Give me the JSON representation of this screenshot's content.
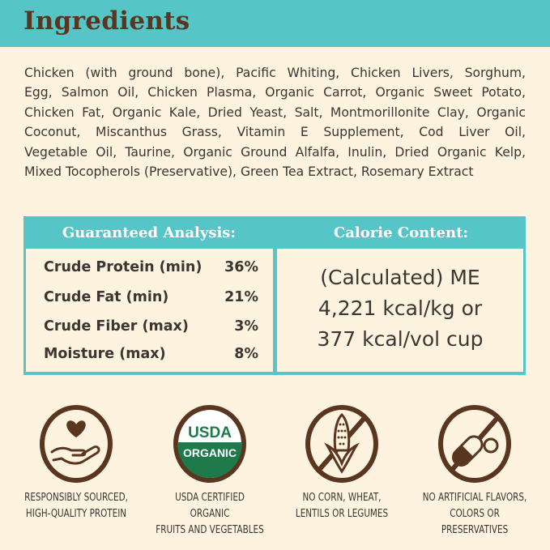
{
  "header": {
    "title": "Ingredients"
  },
  "ingredients": {
    "lines": [
      "Chicken (with ground bone), Pacific Whiting, Chicken Livers, Sorghum,",
      "Egg, Salmon Oil, Chicken Plasma, Organic Carrot, Organic Sweet Potato,",
      "Chicken Fat, Organic Kale, Dried Yeast, Salt, Montmorillonite Clay, Organic",
      "Coconut, Miscanthus Grass, Vitamin E Supplement, Cod Liver Oil,",
      "Vegetable Oil, Taurine, Organic Ground Alfalfa, Inulin, Dried Organic Kelp,",
      "Mixed Tocopherols (Preservative), Green Tea Extract, Rosemary Extract"
    ]
  },
  "analysis": {
    "title": "Guaranteed Analysis:",
    "rows": [
      {
        "label": "Crude Protein (min)",
        "value": "36%"
      },
      {
        "label": "Crude Fat (min)",
        "value": "21%"
      },
      {
        "label": "Crude Fiber (max)",
        "value": "3%"
      },
      {
        "label": "Moisture (max)",
        "value": "8%"
      }
    ]
  },
  "calorie": {
    "title": "Calorie Content:",
    "lines": [
      "(Calculated) ME",
      "4,221 kcal/kg or",
      "377 kcal/vol cup"
    ]
  },
  "badges": [
    {
      "icon": "heart-hand-icon",
      "line1": "RESPONSIBLY SOURCED,",
      "line2": "HIGH-QUALITY PROTEIN"
    },
    {
      "icon": "usda-organic-seal",
      "seal_top": "USDA",
      "seal_bottom": "ORGANIC",
      "line1": "USDA CERTIFIED ORGANIC",
      "line2": "FRUITS AND VEGETABLES"
    },
    {
      "icon": "no-corn-icon",
      "line1": "NO CORN, WHEAT,",
      "line2": "LENTILS OR LEGUMES"
    },
    {
      "icon": "no-artificial-icon",
      "line1": "NO ARTIFICIAL FLAVORS,",
      "line2": "COLORS OR PRESERVATIVES"
    }
  ],
  "colors": {
    "teal": "#56c5c8",
    "brown": "#5a3620",
    "cream": "#fdf3df",
    "usda_green": "#1e7a4a"
  }
}
